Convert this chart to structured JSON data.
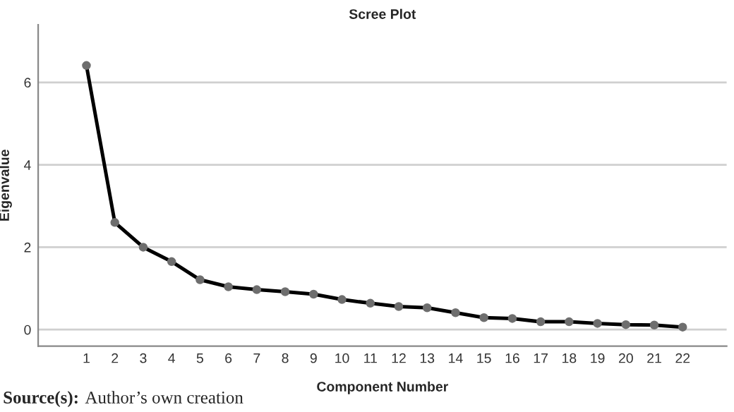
{
  "chart_data": {
    "type": "line",
    "title": "Scree Plot",
    "xlabel": "Component Number",
    "ylabel": "Eigenvalue",
    "categories": [
      "1",
      "2",
      "3",
      "4",
      "5",
      "6",
      "7",
      "8",
      "9",
      "10",
      "11",
      "12",
      "13",
      "14",
      "15",
      "16",
      "17",
      "18",
      "19",
      "20",
      "21",
      "22"
    ],
    "series": [
      {
        "color": "#000000",
        "values": [
          6.41,
          2.6,
          2.0,
          1.65,
          1.21,
          1.04,
          0.97,
          0.92,
          0.86,
          0.73,
          0.64,
          0.56,
          0.53,
          0.41,
          0.29,
          0.27,
          0.19,
          0.19,
          0.15,
          0.12,
          0.11,
          0.06
        ]
      }
    ],
    "ylim": [
      -0.4,
      7.4
    ],
    "yticks": [
      0,
      2,
      4,
      6
    ],
    "grid": "y",
    "marker": "circle",
    "line_style": "solid",
    "annotations": [
      "Source(s):",
      "Author’s own creation"
    ]
  }
}
